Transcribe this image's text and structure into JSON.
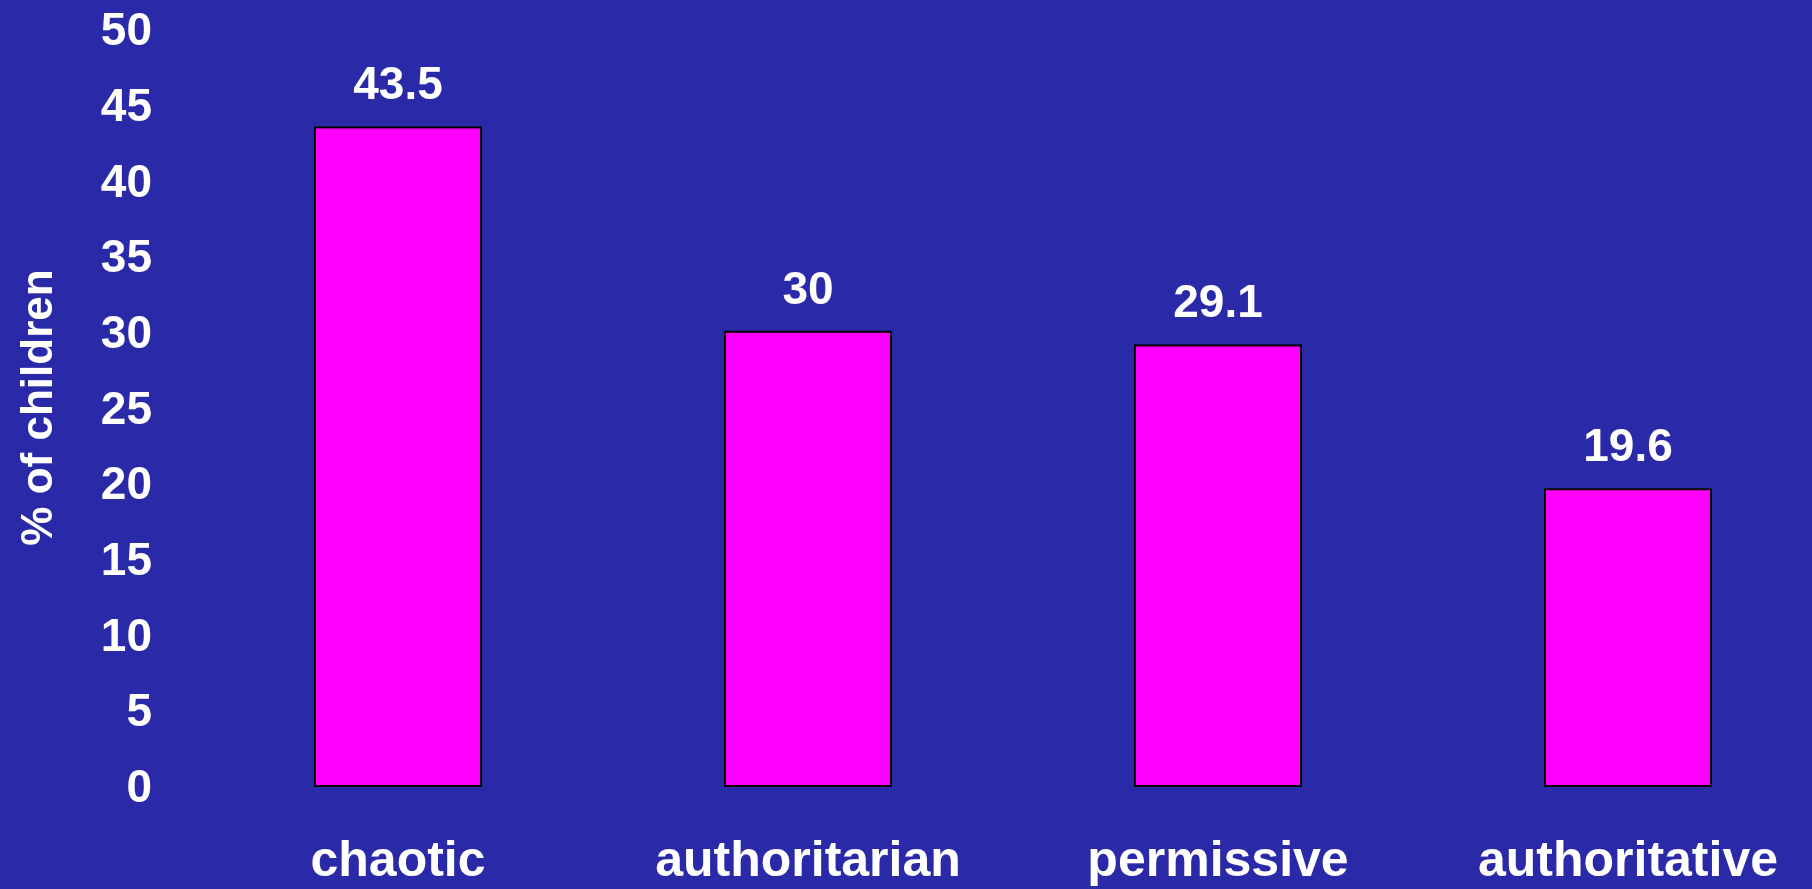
{
  "chart_data": {
    "type": "bar",
    "ylabel": "% of children",
    "categories": [
      "chaotic",
      "authoritarian",
      "permissive",
      "authoritative"
    ],
    "values": [
      43.5,
      30,
      29.1,
      19.6
    ],
    "color": "#ff00ff",
    "ylim": [
      0,
      50
    ],
    "yticks": [
      0,
      5,
      10,
      15,
      20,
      25,
      30,
      35,
      40,
      45,
      50
    ],
    "data_labels": true,
    "grid": false
  }
}
